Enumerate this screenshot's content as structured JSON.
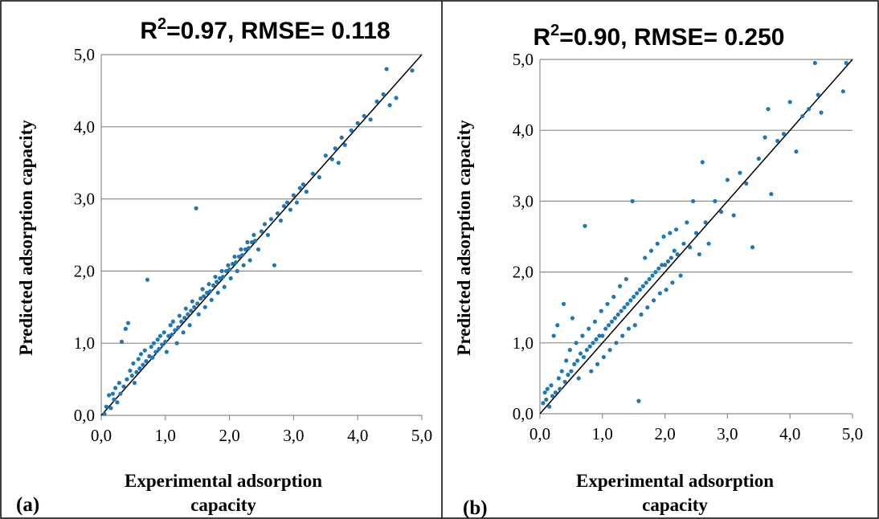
{
  "chart_data": [
    {
      "type": "scatter",
      "panel_label": "(a)",
      "title_main": "R",
      "title_sup": "2",
      "title_rest": "=0.97, RMSE= 0.118",
      "xlabel_line1": "Experimental adsorption",
      "xlabel_line2": "capacity",
      "ylabel": "Predicted adsorption capacity",
      "xlim": [
        0,
        5
      ],
      "ylim": [
        0,
        5
      ],
      "xticks": [
        "0,0",
        "1,0",
        "2,0",
        "3,0",
        "4,0",
        "5,0"
      ],
      "yticks": [
        "0,0",
        "1,0",
        "2,0",
        "3,0",
        "4,0",
        "5,0"
      ],
      "grid": "horizontal",
      "r2": 0.97,
      "rmse": 0.118,
      "reference_line": {
        "x": [
          0,
          5
        ],
        "y": [
          0,
          5
        ]
      },
      "series": [
        {
          "color": "#1f77b4",
          "points": [
            [
              0.05,
              0.02
            ],
            [
              0.08,
              0.12
            ],
            [
              0.12,
              0.28
            ],
            [
              0.15,
              0.1
            ],
            [
              0.18,
              0.3
            ],
            [
              0.2,
              0.22
            ],
            [
              0.22,
              0.38
            ],
            [
              0.25,
              0.18
            ],
            [
              0.28,
              0.45
            ],
            [
              0.3,
              0.3
            ],
            [
              0.32,
              1.02
            ],
            [
              0.35,
              0.4
            ],
            [
              0.38,
              1.2
            ],
            [
              0.4,
              0.5
            ],
            [
              0.42,
              1.28
            ],
            [
              0.45,
              0.62
            ],
            [
              0.48,
              0.55
            ],
            [
              0.5,
              0.72
            ],
            [
              0.52,
              0.45
            ],
            [
              0.55,
              0.6
            ],
            [
              0.58,
              0.78
            ],
            [
              0.6,
              0.65
            ],
            [
              0.62,
              0.85
            ],
            [
              0.65,
              0.7
            ],
            [
              0.68,
              0.9
            ],
            [
              0.7,
              0.75
            ],
            [
              0.72,
              1.88
            ],
            [
              0.75,
              0.82
            ],
            [
              0.78,
              0.95
            ],
            [
              0.8,
              0.8
            ],
            [
              0.82,
              1.0
            ],
            [
              0.85,
              0.88
            ],
            [
              0.88,
              1.05
            ],
            [
              0.9,
              0.92
            ],
            [
              0.92,
              1.1
            ],
            [
              0.95,
              0.98
            ],
            [
              0.98,
              1.15
            ],
            [
              1.0,
              1.02
            ],
            [
              1.02,
              0.88
            ],
            [
              1.05,
              1.1
            ],
            [
              1.08,
              1.25
            ],
            [
              1.1,
              1.12
            ],
            [
              1.12,
              1.3
            ],
            [
              1.15,
              1.18
            ],
            [
              1.18,
              1.0
            ],
            [
              1.2,
              1.22
            ],
            [
              1.22,
              1.38
            ],
            [
              1.25,
              1.3
            ],
            [
              1.28,
              1.15
            ],
            [
              1.3,
              1.35
            ],
            [
              1.32,
              1.48
            ],
            [
              1.35,
              1.4
            ],
            [
              1.38,
              1.25
            ],
            [
              1.4,
              1.45
            ],
            [
              1.42,
              1.58
            ],
            [
              1.45,
              1.5
            ],
            [
              1.48,
              2.87
            ],
            [
              1.5,
              1.55
            ],
            [
              1.52,
              1.4
            ],
            [
              1.55,
              1.62
            ],
            [
              1.58,
              1.75
            ],
            [
              1.6,
              1.65
            ],
            [
              1.62,
              1.5
            ],
            [
              1.65,
              1.7
            ],
            [
              1.68,
              1.82
            ],
            [
              1.7,
              1.72
            ],
            [
              1.72,
              1.6
            ],
            [
              1.75,
              1.8
            ],
            [
              1.78,
              1.92
            ],
            [
              1.8,
              1.85
            ],
            [
              1.82,
              1.7
            ],
            [
              1.85,
              1.9
            ],
            [
              1.88,
              2.0
            ],
            [
              1.9,
              1.92
            ],
            [
              1.92,
              1.78
            ],
            [
              1.95,
              2.0
            ],
            [
              1.98,
              2.08
            ],
            [
              2.0,
              2.02
            ],
            [
              2.02,
              1.9
            ],
            [
              2.05,
              2.1
            ],
            [
              2.08,
              2.2
            ],
            [
              2.1,
              2.12
            ],
            [
              2.12,
              2.0
            ],
            [
              2.15,
              2.2
            ],
            [
              2.18,
              2.3
            ],
            [
              2.2,
              2.22
            ],
            [
              2.22,
              2.08
            ],
            [
              2.25,
              2.3
            ],
            [
              2.28,
              2.4
            ],
            [
              2.3,
              2.32
            ],
            [
              2.32,
              2.15
            ],
            [
              2.35,
              2.4
            ],
            [
              2.38,
              2.5
            ],
            [
              2.4,
              2.42
            ],
            [
              2.45,
              2.3
            ],
            [
              2.5,
              2.55
            ],
            [
              2.55,
              2.65
            ],
            [
              2.6,
              2.5
            ],
            [
              2.65,
              2.72
            ],
            [
              2.7,
              2.08
            ],
            [
              2.75,
              2.8
            ],
            [
              2.8,
              2.7
            ],
            [
              2.85,
              2.9
            ],
            [
              2.9,
              2.95
            ],
            [
              2.95,
              2.85
            ],
            [
              3.0,
              3.05
            ],
            [
              3.05,
              2.95
            ],
            [
              3.1,
              3.15
            ],
            [
              3.15,
              3.2
            ],
            [
              3.2,
              3.1
            ],
            [
              3.3,
              3.35
            ],
            [
              3.4,
              3.3
            ],
            [
              3.5,
              3.6
            ],
            [
              3.6,
              3.55
            ],
            [
              3.65,
              3.7
            ],
            [
              3.7,
              3.5
            ],
            [
              3.75,
              3.85
            ],
            [
              3.8,
              3.75
            ],
            [
              3.9,
              3.95
            ],
            [
              4.0,
              4.05
            ],
            [
              4.1,
              4.15
            ],
            [
              4.2,
              4.1
            ],
            [
              4.3,
              4.35
            ],
            [
              4.4,
              4.45
            ],
            [
              4.45,
              4.8
            ],
            [
              4.5,
              4.3
            ],
            [
              4.6,
              4.4
            ],
            [
              4.85,
              4.78
            ]
          ]
        }
      ]
    },
    {
      "type": "scatter",
      "panel_label": "(b)",
      "title_main": "R",
      "title_sup": "2",
      "title_rest": "=0.90, RMSE= 0.250",
      "xlabel_line1": "Experimental adsorption",
      "xlabel_line2": "capacity",
      "ylabel": "Predicted adsorption capacity",
      "xlim": [
        0,
        5
      ],
      "ylim": [
        0,
        5
      ],
      "xticks": [
        "0,0",
        "1,0",
        "2,0",
        "3,0",
        "4,0",
        "5,0"
      ],
      "yticks": [
        "0,0",
        "1,0",
        "2,0",
        "3,0",
        "4,0",
        "5,0"
      ],
      "grid": "horizontal",
      "r2": 0.9,
      "rmse": 0.25,
      "reference_line": {
        "x": [
          0,
          5
        ],
        "y": [
          0,
          5
        ]
      },
      "series": [
        {
          "color": "#1f77b4",
          "points": [
            [
              0.05,
              0.15
            ],
            [
              0.08,
              0.3
            ],
            [
              0.1,
              0.2
            ],
            [
              0.12,
              0.35
            ],
            [
              0.15,
              0.1
            ],
            [
              0.18,
              0.4
            ],
            [
              0.2,
              0.25
            ],
            [
              0.22,
              1.1
            ],
            [
              0.25,
              0.3
            ],
            [
              0.28,
              1.25
            ],
            [
              0.3,
              0.5
            ],
            [
              0.32,
              0.35
            ],
            [
              0.35,
              0.6
            ],
            [
              0.38,
              1.55
            ],
            [
              0.4,
              0.45
            ],
            [
              0.42,
              0.75
            ],
            [
              0.45,
              0.55
            ],
            [
              0.48,
              0.9
            ],
            [
              0.5,
              0.6
            ],
            [
              0.52,
              1.35
            ],
            [
              0.55,
              0.7
            ],
            [
              0.58,
              1.0
            ],
            [
              0.6,
              0.75
            ],
            [
              0.62,
              0.5
            ],
            [
              0.65,
              0.85
            ],
            [
              0.68,
              1.1
            ],
            [
              0.7,
              0.8
            ],
            [
              0.72,
              2.65
            ],
            [
              0.75,
              0.9
            ],
            [
              0.78,
              1.2
            ],
            [
              0.8,
              0.95
            ],
            [
              0.82,
              0.6
            ],
            [
              0.85,
              1.0
            ],
            [
              0.88,
              1.3
            ],
            [
              0.9,
              1.05
            ],
            [
              0.92,
              0.7
            ],
            [
              0.95,
              1.1
            ],
            [
              0.98,
              1.45
            ],
            [
              1.0,
              1.1
            ],
            [
              1.02,
              0.8
            ],
            [
              1.05,
              1.2
            ],
            [
              1.08,
              1.55
            ],
            [
              1.1,
              1.25
            ],
            [
              1.12,
              0.9
            ],
            [
              1.15,
              1.3
            ],
            [
              1.18,
              1.65
            ],
            [
              1.2,
              1.35
            ],
            [
              1.22,
              1.0
            ],
            [
              1.25,
              1.4
            ],
            [
              1.28,
              1.8
            ],
            [
              1.3,
              1.45
            ],
            [
              1.32,
              1.1
            ],
            [
              1.35,
              1.5
            ],
            [
              1.38,
              1.9
            ],
            [
              1.4,
              1.55
            ],
            [
              1.42,
              1.2
            ],
            [
              1.45,
              1.6
            ],
            [
              1.48,
              3.0
            ],
            [
              1.5,
              1.65
            ],
            [
              1.52,
              1.25
            ],
            [
              1.55,
              1.7
            ],
            [
              1.58,
              0.18
            ],
            [
              1.6,
              1.75
            ],
            [
              1.62,
              1.4
            ],
            [
              1.65,
              1.8
            ],
            [
              1.68,
              2.2
            ],
            [
              1.7,
              1.85
            ],
            [
              1.72,
              1.5
            ],
            [
              1.75,
              1.9
            ],
            [
              1.78,
              2.3
            ],
            [
              1.8,
              1.95
            ],
            [
              1.82,
              1.6
            ],
            [
              1.85,
              2.0
            ],
            [
              1.88,
              2.4
            ],
            [
              1.9,
              2.05
            ],
            [
              1.92,
              1.7
            ],
            [
              1.95,
              2.1
            ],
            [
              1.98,
              2.5
            ],
            [
              2.0,
              2.1
            ],
            [
              2.02,
              1.75
            ],
            [
              2.05,
              2.15
            ],
            [
              2.08,
              2.55
            ],
            [
              2.1,
              2.2
            ],
            [
              2.12,
              1.85
            ],
            [
              2.15,
              2.3
            ],
            [
              2.18,
              2.6
            ],
            [
              2.2,
              2.25
            ],
            [
              2.25,
              1.95
            ],
            [
              2.3,
              2.4
            ],
            [
              2.35,
              2.7
            ],
            [
              2.4,
              2.35
            ],
            [
              2.45,
              3.0
            ],
            [
              2.5,
              2.55
            ],
            [
              2.55,
              2.25
            ],
            [
              2.6,
              3.55
            ],
            [
              2.65,
              2.7
            ],
            [
              2.7,
              2.4
            ],
            [
              2.8,
              3.0
            ],
            [
              2.9,
              2.85
            ],
            [
              3.0,
              3.3
            ],
            [
              3.1,
              2.8
            ],
            [
              3.2,
              3.4
            ],
            [
              3.3,
              3.25
            ],
            [
              3.4,
              2.35
            ],
            [
              3.5,
              3.6
            ],
            [
              3.6,
              3.9
            ],
            [
              3.65,
              4.3
            ],
            [
              3.7,
              3.1
            ],
            [
              3.8,
              3.85
            ],
            [
              3.9,
              3.95
            ],
            [
              4.0,
              4.4
            ],
            [
              4.1,
              3.7
            ],
            [
              4.2,
              4.2
            ],
            [
              4.3,
              4.3
            ],
            [
              4.4,
              4.95
            ],
            [
              4.45,
              4.5
            ],
            [
              4.5,
              4.25
            ],
            [
              4.85,
              4.55
            ],
            [
              4.9,
              4.95
            ]
          ]
        }
      ]
    }
  ]
}
